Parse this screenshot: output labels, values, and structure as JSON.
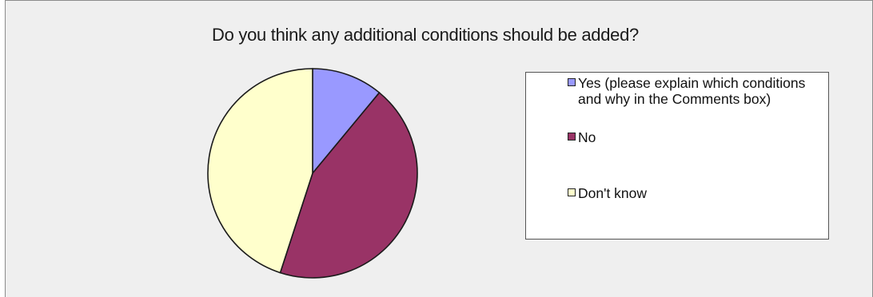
{
  "chart_data": {
    "type": "pie",
    "title": "Do you think any additional conditions should be added?",
    "categories": [
      "Yes (please explain which conditions and why in the Comments box)",
      "No",
      "Don't know"
    ],
    "values": [
      11,
      44,
      45
    ],
    "colors": [
      "#9999ff",
      "#993366",
      "#ffffcc"
    ],
    "start_angle": "12 o'clock, clockwise",
    "legend_position": "right"
  }
}
